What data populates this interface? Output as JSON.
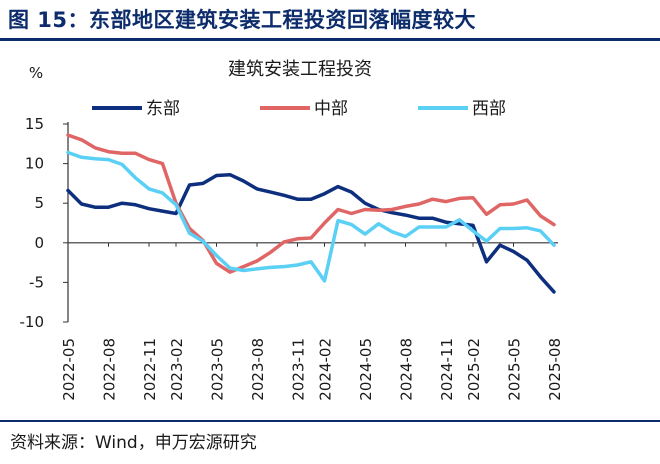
{
  "figure": {
    "title": "图 15：东部地区建筑安装工程投资回落幅度较大",
    "source": "资料来源：Wind，申万宏源研究"
  },
  "chart_data": {
    "type": "line",
    "title": "建筑安装工程投资",
    "ylabel": "%",
    "xlabel": "",
    "ylim": [
      -10,
      15
    ],
    "yticks": [
      -10,
      -5,
      0,
      5,
      10,
      15
    ],
    "legend_position": "top",
    "x": [
      "2022-05",
      "2022-06",
      "2022-07",
      "2022-08",
      "2022-09",
      "2022-10",
      "2022-11",
      "2022-12",
      "2023-02",
      "2023-03",
      "2023-04",
      "2023-05",
      "2023-06",
      "2023-07",
      "2023-08",
      "2023-09",
      "2023-10",
      "2023-11",
      "2023-12",
      "2024-02",
      "2024-03",
      "2024-04",
      "2024-05",
      "2024-06",
      "2024-07",
      "2024-08",
      "2024-09",
      "2024-10",
      "2024-11",
      "2024-12",
      "2025-02",
      "2025-03",
      "2025-04",
      "2025-05",
      "2025-06",
      "2025-07",
      "2025-08"
    ],
    "x_tick_labels": [
      "2022-05",
      "2022-08",
      "2022-11",
      "2023-02",
      "2023-05",
      "2023-08",
      "2023-11",
      "2024-02",
      "2024-05",
      "2024-08",
      "2024-11",
      "2025-02",
      "2025-05",
      "2025-08"
    ],
    "series": [
      {
        "name": "东部",
        "color": "#0d2f7e",
        "values": [
          6.6,
          4.9,
          4.5,
          4.5,
          5.0,
          4.8,
          4.3,
          4.0,
          3.7,
          7.3,
          7.5,
          8.5,
          8.6,
          7.8,
          6.8,
          6.4,
          6.0,
          5.5,
          5.5,
          6.2,
          7.1,
          6.4,
          5.0,
          4.2,
          3.8,
          3.5,
          3.1,
          3.1,
          2.6,
          2.4,
          2.2,
          -2.4,
          -0.3,
          -1.1,
          -2.2,
          -4.3,
          -6.2
        ]
      },
      {
        "name": "中部",
        "color": "#e06666",
        "values": [
          13.6,
          13.0,
          12.0,
          11.5,
          11.3,
          11.3,
          10.5,
          10.0,
          5.0,
          1.8,
          0.3,
          -2.6,
          -3.7,
          -3.0,
          -2.3,
          -1.2,
          0.1,
          0.5,
          0.6,
          2.5,
          4.2,
          3.7,
          4.2,
          4.1,
          4.2,
          4.6,
          4.9,
          5.5,
          5.2,
          5.6,
          5.7,
          3.6,
          4.8,
          4.9,
          5.4,
          3.4,
          2.3
        ]
      },
      {
        "name": "西部",
        "color": "#5bd0f5",
        "values": [
          11.4,
          10.8,
          10.6,
          10.5,
          9.9,
          8.2,
          6.8,
          6.3,
          4.8,
          1.2,
          0.2,
          -1.6,
          -3.2,
          -3.5,
          -3.3,
          -3.1,
          -3.0,
          -2.8,
          -2.4,
          -4.8,
          2.8,
          2.3,
          1.1,
          2.4,
          1.4,
          0.8,
          2.0,
          2.0,
          2.0,
          2.9,
          1.5,
          0.2,
          1.8,
          1.8,
          1.9,
          1.5,
          -0.3
        ]
      }
    ]
  }
}
